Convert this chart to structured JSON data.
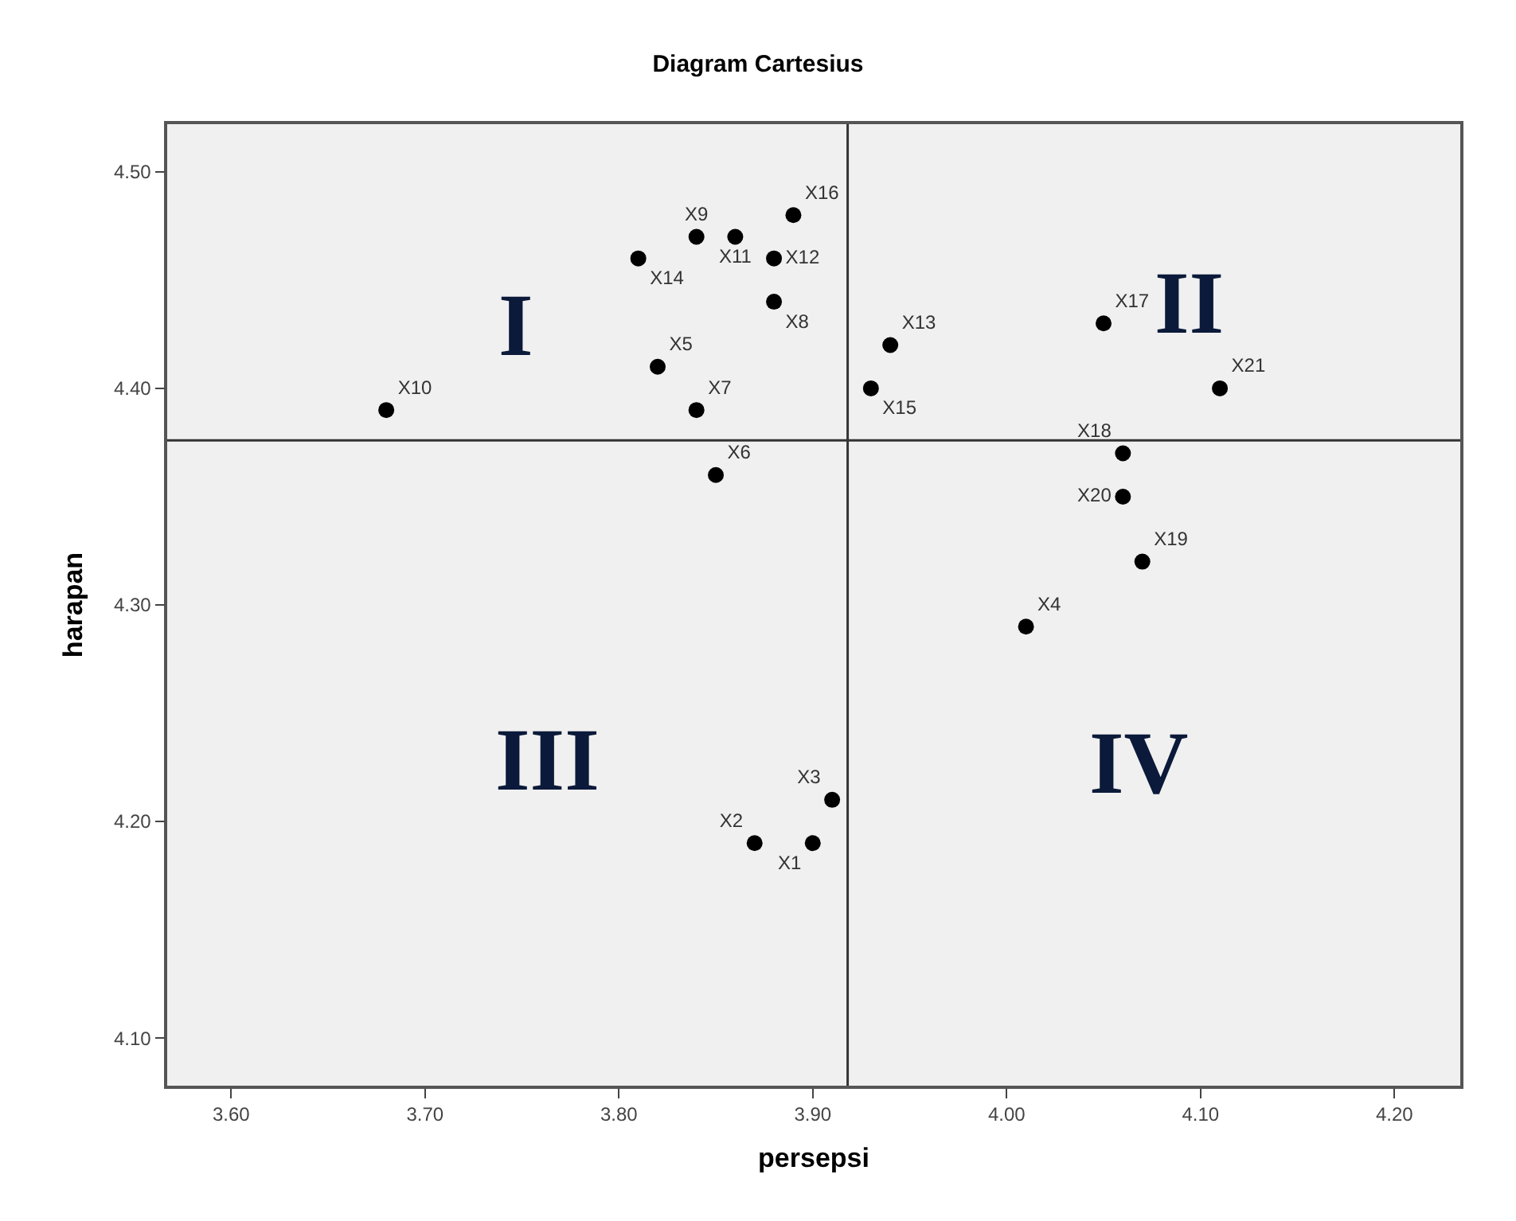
{
  "chart_data": {
    "type": "scatter",
    "title": "Diagram Cartesius",
    "xlabel": "persepsi",
    "ylabel": "harapan",
    "x": [
      3.9,
      3.87,
      3.91,
      4.01,
      3.82,
      3.85,
      3.84,
      3.88,
      3.84,
      3.68,
      3.86,
      3.88,
      3.94,
      3.81,
      3.93,
      3.89,
      4.05,
      4.06,
      4.07,
      4.06,
      4.11
    ],
    "series": [
      {
        "color": "#000000",
        "values": [
          4.19,
          4.19,
          4.21,
          4.29,
          4.41,
          4.36,
          4.39,
          4.44,
          4.47,
          4.39,
          4.47,
          4.46,
          4.42,
          4.46,
          4.4,
          4.48,
          4.43,
          4.37,
          4.32,
          4.35,
          4.4
        ],
        "value_labels": [
          "X1",
          "X2",
          "X3",
          "X4",
          "X5",
          "X6",
          "X7",
          "X8",
          "X9",
          "X10",
          "X11",
          "X12",
          "X13",
          "X14",
          "X15",
          "X16",
          "X17",
          "X18",
          "X19",
          "X20",
          "X21"
        ]
      }
    ],
    "marker": "circle",
    "grid": false,
    "xlim": [
      3.567,
      4.234
    ],
    "xticks": [
      {
        "value": 3.6,
        "label": "3.60"
      },
      {
        "value": 3.7,
        "label": "3.70"
      },
      {
        "value": 3.8,
        "label": "3.80"
      },
      {
        "value": 3.9,
        "label": "3.90"
      },
      {
        "value": 4.0,
        "label": "4.00"
      },
      {
        "value": 4.1,
        "label": "4.10"
      },
      {
        "value": 4.2,
        "label": "4.20"
      }
    ],
    "ylim": [
      4.078,
      4.522
    ],
    "yticks": [
      {
        "value": 4.1,
        "label": "4.10"
      },
      {
        "value": 4.2,
        "label": "4.20"
      },
      {
        "value": 4.3,
        "label": "4.30"
      },
      {
        "value": 4.4,
        "label": "4.40"
      },
      {
        "value": 4.5,
        "label": "4.50"
      }
    ],
    "ref_lines": [
      {
        "axis": "x",
        "value": 3.918,
        "color": "#333333"
      },
      {
        "axis": "y",
        "value": 4.376,
        "color": "#333333"
      }
    ],
    "annotations": [
      "I",
      "II",
      "III",
      "IV"
    ]
  }
}
